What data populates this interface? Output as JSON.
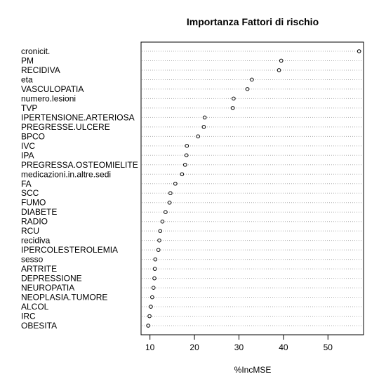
{
  "chart_data": {
    "type": "scatter",
    "title": "Importanza Fattori di rischio",
    "xlabel": "%IncMSE",
    "ylabel": "",
    "xlim": [
      8,
      58
    ],
    "xticks": [
      10,
      20,
      30,
      40,
      50
    ],
    "grid": "dotted horizontal guide lines per variable",
    "marker": "open-circle",
    "categories": [
      "cronicit.",
      "PM",
      "RECIDIVA",
      "eta",
      "VASCULOPATIA",
      "numero.lesioni",
      "TVP",
      "IPERTENSIONE.ARTERIOSA",
      "PREGRESSE.ULCERE",
      "BPCO",
      "IVC",
      "IPA",
      "PREGRESSA.OSTEOMIELITE",
      "medicazioni.in.altre.sedi",
      "FA",
      "SCC",
      "FUMO",
      "DIABETE",
      "RADIO",
      "RCU",
      "recidiva",
      "IPERCOLESTEROLEMIA",
      "sesso",
      "ARTRITE",
      "DEPRESSIONE",
      "NEUROPATIA",
      "NEOPLASIA.TUMORE",
      "ALCOL",
      "IRC",
      "OBESITA"
    ],
    "values": [
      57.0,
      39.5,
      39.0,
      32.9,
      31.9,
      28.8,
      28.6,
      22.3,
      22.1,
      20.8,
      18.3,
      18.2,
      17.9,
      17.2,
      15.7,
      14.6,
      14.4,
      13.5,
      12.8,
      12.3,
      12.1,
      11.9,
      11.2,
      11.1,
      11.0,
      10.8,
      10.5,
      10.2,
      9.9,
      9.6
    ]
  }
}
